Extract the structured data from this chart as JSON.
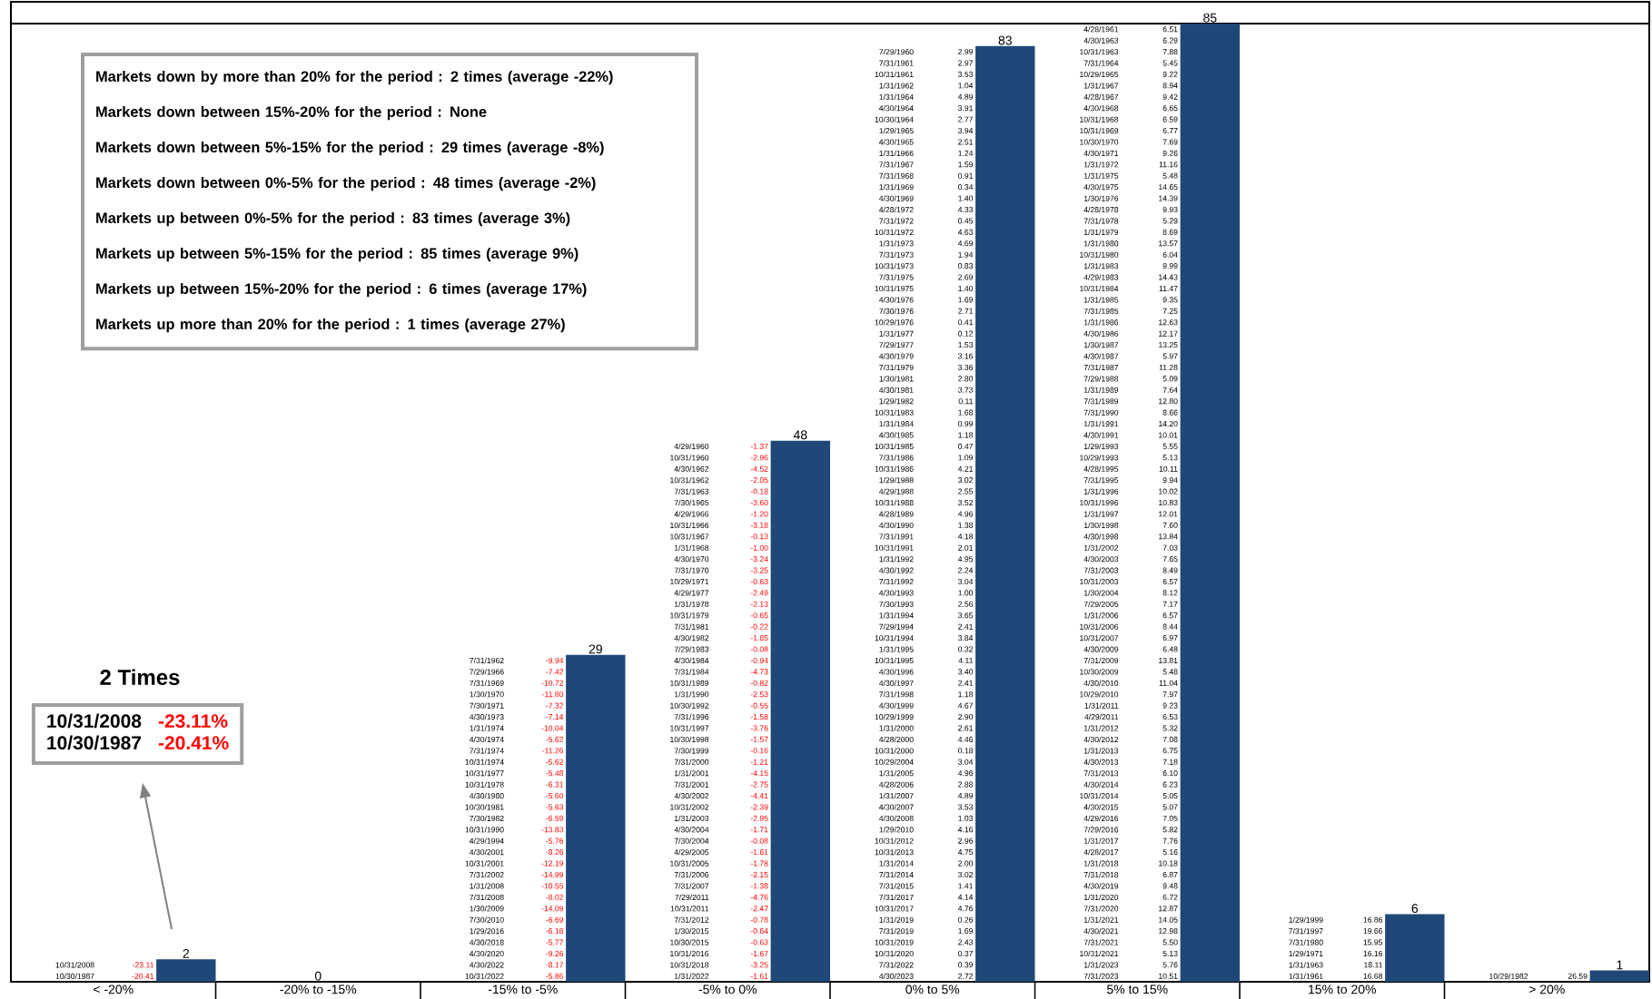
{
  "chart_data": {
    "type": "bar",
    "categories": [
      "< -20%",
      "-20% to -15%",
      "-15% to -5%",
      "-5% to 0%",
      "0% to 5%",
      "5% to 15%",
      "15% to 20%",
      "> 20%"
    ],
    "values": [
      2,
      0,
      29,
      48,
      83,
      85,
      6,
      1
    ],
    "color": "#1f4778",
    "data_labels": true,
    "tick_labels": "x",
    "annotations": [
      "Markets down by more than 20% for the period : 2 times (average -22%)",
      "Markets down between 15%-20% for the period : None",
      "Markets down between 5%-15% for the period : 29 times (average -8%)",
      "Markets down between 0%-5% for the period : 48 times (average -2%)",
      "Markets up between 0%-5% for the period : 83 times (average 3%)",
      "Markets up between 5%-15% for the period : 85 times (average 9%)",
      "Markets up between 15%-20% for the period : 6 times (average 17%)",
      "Markets up more than 20% for the period : 1 times (average 27%)",
      "2 Times",
      "10/31/2008",
      "-23.11%",
      "10/30/1987",
      "-20.41%",
      "10/31/2008",
      "-23.11",
      "10/30/1987",
      "-20.41",
      "7/31/1962",
      "-9.94",
      "7/29/1966",
      "-7.42",
      "7/31/1969",
      "-10.72",
      "1/30/1970",
      "-11.80",
      "7/30/1971",
      "-7.32",
      "4/30/1973",
      "-7.14",
      "1/31/1974",
      "-10.04",
      "4/30/1974",
      "-5.62",
      "7/31/1974",
      "-11.26",
      "10/31/1974",
      "-5.62",
      "10/31/1977",
      "-5.48",
      "10/31/1978",
      "-6.31",
      "4/30/1980",
      "-5.60",
      "10/30/1981",
      "-5.63",
      "7/30/1982",
      "-6.59",
      "10/31/1990",
      "-13.83",
      "4/29/1994",
      "-5.76",
      "4/30/2001",
      "-8.26",
      "10/31/2001",
      "-12.19",
      "7/31/2002",
      "-14.99",
      "1/31/2008",
      "-10.55",
      "7/31/2008",
      "-8.02",
      "1/30/2009",
      "-14.09",
      "7/30/2010",
      "-6.69",
      "1/29/2016",
      "-6.18",
      "4/30/2018",
      "-5.77",
      "4/30/2020",
      "-9.26",
      "4/30/2022",
      "-8.17",
      "10/31/2022",
      "-5.86",
      "4/29/1960",
      "-1.37",
      "10/31/1960",
      "-2.96",
      "4/30/1962",
      "-4.52",
      "10/31/1962",
      "-2.05",
      "7/31/1963",
      "-0.18",
      "7/30/1965",
      "-3.60",
      "4/29/1966",
      "-1.20",
      "10/31/1966",
      "-3.18",
      "10/31/1967",
      "-0.13",
      "1/31/1968",
      "-1.00",
      "4/30/1970",
      "-3.24",
      "7/31/1970",
      "-3.25",
      "10/29/1971",
      "-0.63",
      "4/29/1977",
      "-2.49",
      "1/31/1978",
      "-2.13",
      "10/31/1979",
      "-0.65",
      "7/31/1981",
      "-0.22",
      "4/30/1982",
      "-1.85",
      "7/29/1983",
      "-0.08",
      "4/30/1984",
      "-0.94",
      "7/31/1984",
      "-4.73",
      "10/31/1989",
      "-0.82",
      "1/31/1990",
      "-2.53",
      "10/30/1992",
      "-0.55",
      "7/31/1996",
      "-1.58",
      "10/31/1997",
      "-3.76",
      "10/30/1998",
      "-1.57",
      "7/30/1999",
      "-0.16",
      "7/31/2000",
      "-1.21",
      "1/31/2001",
      "-4.15",
      "7/31/2001",
      "-2.75",
      "4/30/2002",
      "-4.41",
      "10/31/2002",
      "-2.39",
      "1/31/2003",
      "-2.95",
      "4/30/2004",
      "-1.71",
      "7/30/2004",
      "-0.08",
      "4/29/2005",
      "-1.61",
      "10/31/2005",
      "-1.78",
      "7/31/2006",
      "-2.15",
      "7/31/2007",
      "-1.38",
      "7/29/2011",
      "-4.76",
      "10/31/2011",
      "-2.47",
      "7/31/2012",
      "-0.78",
      "1/30/2015",
      "-0.64",
      "10/30/2015",
      "-0.63",
      "10/31/2016",
      "-1.67",
      "10/31/2018",
      "-3.25",
      "1/31/2022",
      "-1.61",
      "7/29/1960",
      "2.99",
      "7/31/1961",
      "2.97",
      "10/31/1961",
      "3.53",
      "1/31/1962",
      "1.04",
      "1/31/1964",
      "4.89",
      "4/30/1964",
      "3.91",
      "10/30/1964",
      "2.77",
      "1/29/1965",
      "3.94",
      "4/30/1965",
      "2.51",
      "1/31/1966",
      "1.24",
      "7/31/1967",
      "1.59",
      "7/31/1968",
      "0.91",
      "1/31/1969",
      "0.34",
      "4/30/1969",
      "1.40",
      "4/28/1972",
      "4.33",
      "7/31/1972",
      "0.45",
      "10/31/1972",
      "4.63",
      "1/31/1973",
      "4.69",
      "7/31/1973",
      "1.94",
      "10/31/1973",
      "0.83",
      "7/31/1975",
      "2.69",
      "10/31/1975",
      "1.40",
      "4/30/1976",
      "1.69",
      "7/30/1976",
      "2.71",
      "10/29/1976",
      "0.41",
      "1/31/1977",
      "0.12",
      "7/29/1977",
      "1.53",
      "4/30/1979",
      "3.16",
      "7/31/1979",
      "3.36",
      "1/30/1981",
      "2.80",
      "4/30/1981",
      "3.73",
      "1/29/1982",
      "0.11",
      "10/31/1983",
      "1.68",
      "1/31/1984",
      "0.99",
      "4/30/1985",
      "1.18",
      "10/31/1985",
      "0.47",
      "7/31/1986",
      "1.09",
      "10/31/1986",
      "4.21",
      "1/29/1988",
      "3.02",
      "4/29/1988",
      "2.55",
      "10/31/1988",
      "3.52",
      "4/28/1989",
      "4.96",
      "4/30/1990",
      "1.38",
      "7/31/1991",
      "4.18",
      "10/31/1991",
      "2.01",
      "1/31/1992",
      "4.95",
      "4/30/1992",
      "2.24",
      "7/31/1992",
      "3.04",
      "4/30/1993",
      "1.00",
      "7/30/1993",
      "2.56",
      "1/31/1994",
      "3.65",
      "7/29/1994",
      "2.41",
      "10/31/1994",
      "3.84",
      "1/31/1995",
      "0.32",
      "10/31/1995",
      "4.11",
      "4/30/1996",
      "3.40",
      "4/30/1997",
      "2.41",
      "7/31/1998",
      "1.18",
      "4/30/1999",
      "4.67",
      "10/29/1999",
      "2.90",
      "1/31/2000",
      "2.61",
      "4/28/2000",
      "4.46",
      "10/31/2000",
      "0.18",
      "10/29/2004",
      "3.04",
      "1/31/2005",
      "4.96",
      "4/28/2006",
      "2.88",
      "1/31/2007",
      "4.89",
      "4/30/2007",
      "3.53",
      "4/30/2008",
      "1.03",
      "1/29/2010",
      "4.16",
      "10/31/2012",
      "2.96",
      "10/31/2013",
      "4.75",
      "1/31/2014",
      "2.00",
      "7/31/2014",
      "3.02",
      "7/31/2015",
      "1.41",
      "7/31/2017",
      "4.14",
      "10/31/2017",
      "4.76",
      "1/31/2019",
      "0.26",
      "7/31/2019",
      "1.69",
      "10/31/2019",
      "2.43",
      "10/31/2020",
      "0.37",
      "7/31/2022",
      "0.39",
      "4/30/2023",
      "2.72",
      "4/28/1961",
      "6.51",
      "4/30/1963",
      "6.29",
      "10/31/1963",
      "7.88",
      "7/31/1964",
      "5.45",
      "10/29/1965",
      "9.22",
      "1/31/1967",
      "8.94",
      "4/28/1967",
      "9.42",
      "4/30/1968",
      "6.65",
      "10/31/1968",
      "6.59",
      "10/31/1969",
      "6.77",
      "10/30/1970",
      "7.69",
      "4/30/1971",
      "9.26",
      "1/31/1972",
      "11.16",
      "1/31/1975",
      "5.48",
      "4/30/1975",
      "14.65",
      "1/30/1976",
      "14.39",
      "4/28/1978",
      "9.93",
      "7/31/1978",
      "5.29",
      "1/31/1979",
      "8.69",
      "1/31/1980",
      "13.57",
      "10/31/1980",
      "6.04",
      "1/31/1983",
      "9.99",
      "4/29/1983",
      "14.43",
      "10/31/1984",
      "11.47",
      "1/31/1985",
      "9.35",
      "7/31/1985",
      "7.25",
      "1/31/1986",
      "12.63",
      "4/30/1986",
      "12.17",
      "1/30/1987",
      "13.25",
      "4/30/1987",
      "5.97",
      "7/31/1987",
      "11.28",
      "7/29/1988",
      "5.09",
      "1/31/1989",
      "7.64",
      "7/31/1989",
      "12.80",
      "7/31/1990",
      "8.66",
      "1/31/1991",
      "14.20",
      "4/30/1991",
      "10.01",
      "1/29/1993",
      "5.55",
      "10/29/1993",
      "5.13",
      "4/28/1995",
      "10.11",
      "7/31/1995",
      "9.94",
      "1/31/1996",
      "10.02",
      "10/31/1996",
      "10.83",
      "1/31/1997",
      "12.01",
      "1/30/1998",
      "7.60",
      "4/30/1998",
      "13.84",
      "1/31/2002",
      "7.03",
      "4/30/2003",
      "7.65",
      "7/31/2003",
      "8.49",
      "10/31/2003",
      "6.57",
      "1/30/2004",
      "8.12",
      "7/29/2005",
      "7.17",
      "1/31/2006",
      "6.57",
      "10/31/2006",
      "8.44",
      "10/31/2007",
      "6.97",
      "4/30/2009",
      "6.48",
      "7/31/2009",
      "13.81",
      "10/30/2009",
      "5.48",
      "4/30/2010",
      "11.04",
      "10/29/2010",
      "7.97",
      "1/31/2011",
      "9.23",
      "4/29/2011",
      "6.53",
      "1/31/2012",
      "5.32",
      "4/30/2012",
      "7.08",
      "1/31/2013",
      "6.75",
      "4/30/2013",
      "7.18",
      "7/31/2013",
      "6.10",
      "4/30/2014",
      "6.23",
      "10/31/2014",
      "5.05",
      "4/30/2015",
      "5.07",
      "4/29/2016",
      "7.05",
      "7/29/2016",
      "5.82",
      "1/31/2017",
      "7.76",
      "4/28/2017",
      "5.16",
      "1/31/2018",
      "10.18",
      "7/31/2018",
      "6.87",
      "4/30/2019",
      "9.48",
      "1/31/2020",
      "6.72",
      "7/31/2020",
      "12.87",
      "1/31/2021",
      "14.05",
      "4/30/2021",
      "12.98",
      "7/31/2021",
      "5.50",
      "10/31/2021",
      "5.13",
      "1/31/2023",
      "5.76",
      "7/31/2023",
      "10.51",
      "1/29/1999",
      "16.86",
      "7/31/1997",
      "19.66",
      "7/31/1980",
      "15.95",
      "1/29/1971",
      "16.16",
      "1/31/1963",
      "18.11",
      "1/31/1961",
      "16.68",
      "10/29/1982",
      "26.59"
    ]
  }
}
